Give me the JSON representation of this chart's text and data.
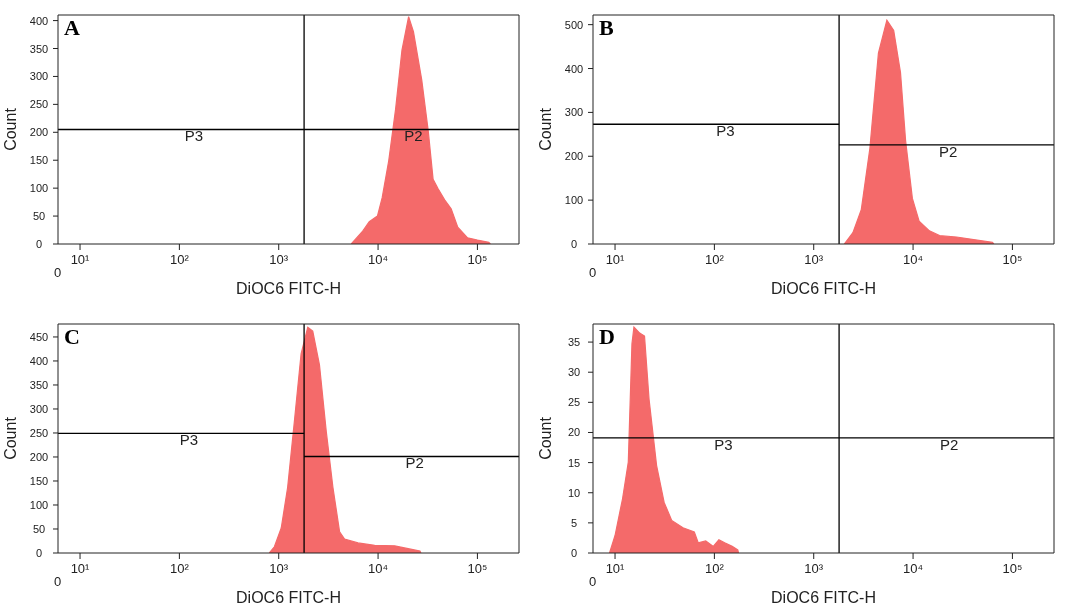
{
  "chart_data": [
    {
      "type": "area",
      "title": "A",
      "xlabel": "DiOC6 FITC-H",
      "ylabel": "Count",
      "log": "x",
      "grid": false,
      "legend": false,
      "xlim": [
        6,
        262144
      ],
      "xticks": [
        {
          "value": 10,
          "label": "10¹"
        },
        {
          "value": 100,
          "label": "10²"
        },
        {
          "value": 1000,
          "label": "10³"
        },
        {
          "value": 10000,
          "label": "10⁴"
        },
        {
          "value": 100000,
          "label": "10⁵"
        }
      ],
      "ylim": [
        0,
        410
      ],
      "yticks": [
        0,
        50,
        100,
        150,
        200,
        250,
        300,
        350,
        400
      ],
      "series": [
        {
          "color": "#f46a6a",
          "x": [
            5370,
            7000,
            8150,
            9850,
            11000,
            12800,
            15000,
            17400,
            20300,
            22700,
            27500,
            32000,
            35800,
            40200,
            46800,
            54400,
            63400,
            79600,
            100000,
            130000,
            135000
          ],
          "values": [
            0,
            23,
            40,
            50,
            83,
            149,
            241,
            347,
            407,
            380,
            294,
            202,
            116,
            99,
            79,
            63,
            30,
            11,
            7,
            3,
            0
          ]
        },
        {
          "type": "line",
          "color": "#000000",
          "x": [
            6,
            1800,
            262144
          ],
          "values": [
            205,
            205,
            205
          ]
        }
      ],
      "ref_lines": [
        {
          "axis": "x",
          "value": 1800,
          "color": "#000000"
        }
      ],
      "annotations": [
        {
          "text": "P3",
          "x": 140,
          "y": 205
        },
        {
          "text": "P2",
          "x": 22700,
          "y": 205
        },
        "0"
      ]
    },
    {
      "type": "area",
      "title": "B",
      "xlabel": "DiOC6 FITC-H",
      "ylabel": "Count",
      "log": "x",
      "grid": false,
      "legend": false,
      "xlim": [
        6,
        262144
      ],
      "xticks": [
        {
          "value": 10,
          "label": "10¹"
        },
        {
          "value": 100,
          "label": "10²"
        },
        {
          "value": 1000,
          "label": "10³"
        },
        {
          "value": 10000,
          "label": "10⁴"
        },
        {
          "value": 100000,
          "label": "10⁵"
        }
      ],
      "ylim": [
        0,
        522
      ],
      "yticks": [
        0,
        100,
        200,
        300,
        400,
        500
      ],
      "series": [
        {
          "color": "#f46a6a",
          "x": [
            2030,
            2480,
            3010,
            3670,
            4480,
            5450,
            6380,
            7470,
            8410,
            9840,
            11500,
            14600,
            18500,
            27400,
            40700,
            62800,
            65000
          ],
          "values": [
            0,
            26,
            78,
            217,
            435,
            510,
            487,
            391,
            235,
            104,
            52,
            30,
            19,
            16,
            10,
            4,
            0
          ]
        },
        {
          "type": "line",
          "color": "#000000",
          "x": [
            6,
            1800
          ],
          "values": [
            273,
            273
          ]
        },
        {
          "type": "line",
          "color": "#000000",
          "x": [
            1800,
            262144
          ],
          "values": [
            226,
            226
          ]
        }
      ],
      "ref_lines": [
        {
          "axis": "x",
          "value": 1800,
          "color": "#000000"
        }
      ],
      "annotations": [
        {
          "text": "P3",
          "x": 129,
          "y": 273
        },
        {
          "text": "P2",
          "x": 22500,
          "y": 226
        },
        "0"
      ]
    },
    {
      "type": "area",
      "title": "C",
      "xlabel": "DiOC6 FITC-H",
      "ylabel": "Count",
      "log": "x",
      "grid": false,
      "legend": false,
      "xlim": [
        6,
        262144
      ],
      "xticks": [
        {
          "value": 10,
          "label": "10¹"
        },
        {
          "value": 100,
          "label": "10²"
        },
        {
          "value": 1000,
          "label": "10³"
        },
        {
          "value": 10000,
          "label": "10⁴"
        },
        {
          "value": 100000,
          "label": "10⁵"
        }
      ],
      "ylim": [
        0,
        477
      ],
      "yticks": [
        0,
        50,
        100,
        150,
        200,
        250,
        300,
        350,
        400,
        450
      ],
      "series": [
        {
          "color": "#f46a6a",
          "x": [
            805,
            904,
            1060,
            1230,
            1440,
            1680,
            1960,
            2200,
            2570,
            3010,
            3510,
            4100,
            4600,
            6280,
            9250,
            14700,
            20100,
            26400,
            27000
          ],
          "values": [
            0,
            13,
            52,
            137,
            276,
            415,
            470,
            462,
            392,
            253,
            137,
            44,
            29,
            21,
            16,
            15,
            9,
            4,
            0
          ]
        },
        {
          "type": "line",
          "color": "#000000",
          "x": [
            6,
            1800
          ],
          "values": [
            249,
            249
          ]
        },
        {
          "type": "line",
          "color": "#000000",
          "x": [
            1800,
            262144
          ],
          "values": [
            201,
            201
          ]
        }
      ],
      "ref_lines": [
        {
          "axis": "x",
          "value": 1800,
          "color": "#000000"
        }
      ],
      "annotations": [
        {
          "text": "P3",
          "x": 125,
          "y": 249
        },
        {
          "text": "P2",
          "x": 23400,
          "y": 201
        },
        "0"
      ]
    },
    {
      "type": "area",
      "title": "D",
      "xlabel": "DiOC6 FITC-H",
      "ylabel": "Count",
      "log": "x",
      "grid": false,
      "legend": false,
      "xlim": [
        6,
        262144
      ],
      "xticks": [
        {
          "value": 10,
          "label": "10¹"
        },
        {
          "value": 100,
          "label": "10²"
        },
        {
          "value": 1000,
          "label": "10³"
        },
        {
          "value": 10000,
          "label": "10⁴"
        },
        {
          "value": 100000,
          "label": "10⁵"
        }
      ],
      "ylim": [
        0,
        38
      ],
      "yticks": [
        0,
        5,
        10,
        15,
        20,
        25,
        30,
        35
      ],
      "series": [
        {
          "color": "#f46a6a",
          "x": [
            8.8,
            10,
            11.9,
            13.6,
            14.8,
            15.5,
            17.7,
            19.8,
            22,
            26.2,
            31.2,
            37.2,
            48.3,
            62.8,
            68.7,
            81.8,
            97.5,
            111,
            127,
            151,
            172,
            175
          ],
          "values": [
            0,
            2.9,
            9,
            15.1,
            34.7,
            37.5,
            36.5,
            36,
            25.5,
            14.5,
            8.4,
            5.4,
            4.2,
            3.5,
            1.7,
            2,
            1.1,
            2.2,
            1.7,
            1.1,
            0.5,
            0
          ]
        },
        {
          "type": "line",
          "color": "#000000",
          "x": [
            6,
            1800,
            262144
          ],
          "values": [
            19.1,
            19.1,
            19.1
          ]
        }
      ],
      "ref_lines": [
        {
          "axis": "x",
          "value": 1800,
          "color": "#000000"
        }
      ],
      "annotations": [
        {
          "text": "P3",
          "x": 123,
          "y": 19.1
        },
        {
          "text": "P2",
          "x": 23100,
          "y": 19.1
        },
        "0"
      ]
    }
  ]
}
